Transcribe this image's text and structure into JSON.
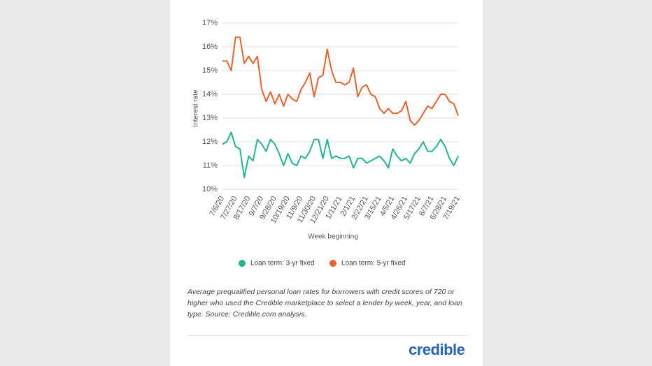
{
  "chart_data": {
    "type": "line",
    "y_label": "Interest rate",
    "x_label": "Week beginning",
    "categories": [
      "7/6/20",
      null,
      null,
      "7/27/20",
      null,
      null,
      "8/17/20",
      null,
      null,
      "9/7/20",
      null,
      null,
      "9/28/20",
      null,
      null,
      "10/19/20",
      null,
      null,
      "11/9/20",
      null,
      null,
      "11/30/20",
      null,
      null,
      "12/21/20",
      null,
      null,
      "1/11/21",
      null,
      null,
      "2/1/21",
      null,
      null,
      "2/22/21",
      null,
      null,
      "3/15/21",
      null,
      null,
      "4/5/21",
      null,
      null,
      "4/26/21",
      null,
      null,
      "5/17/21",
      null,
      null,
      "6/7/21",
      null,
      null,
      "6/28/21",
      null,
      null,
      "7/19/21"
    ],
    "series": [
      {
        "name": "Loan term: 3-yr fixed",
        "color": "#22b594",
        "values": [
          11.9,
          12.0,
          12.4,
          11.8,
          11.7,
          10.5,
          11.4,
          11.2,
          12.1,
          11.9,
          11.6,
          12.1,
          11.9,
          11.5,
          11.0,
          11.5,
          11.1,
          11.0,
          11.4,
          11.3,
          11.6,
          12.1,
          12.1,
          11.3,
          12.1,
          11.3,
          11.4,
          11.3,
          11.3,
          11.4,
          10.9,
          11.3,
          11.3,
          11.1,
          11.2,
          11.3,
          11.4,
          11.2,
          10.9,
          11.7,
          11.4,
          11.2,
          11.3,
          11.1,
          11.5,
          11.7,
          12.0,
          11.6,
          11.6,
          11.8,
          12.1,
          11.8,
          11.3,
          11.0,
          11.4
        ]
      },
      {
        "name": "Loan term: 5-yr fixed",
        "color": "#e8622c",
        "values": [
          15.4,
          15.4,
          15.0,
          16.4,
          16.4,
          15.3,
          15.6,
          15.3,
          15.6,
          14.2,
          13.7,
          14.1,
          13.6,
          14.0,
          13.5,
          14.0,
          13.8,
          13.7,
          14.2,
          14.5,
          14.9,
          13.9,
          14.7,
          14.8,
          15.9,
          15.0,
          14.5,
          14.5,
          14.4,
          14.5,
          15.1,
          13.9,
          14.3,
          14.4,
          14.0,
          13.9,
          13.4,
          13.2,
          13.4,
          13.2,
          13.2,
          13.3,
          13.7,
          12.9,
          12.7,
          12.9,
          13.2,
          13.5,
          13.4,
          13.7,
          14.0,
          14.0,
          13.7,
          13.6,
          13.1
        ]
      }
    ],
    "ylim": [
      10,
      17
    ],
    "yticks": [
      {
        "value": 10,
        "label": "10%"
      },
      {
        "value": 11,
        "label": "11%"
      },
      {
        "value": 12,
        "label": "12%"
      },
      {
        "value": 13,
        "label": "13%"
      },
      {
        "value": 14,
        "label": "14%"
      },
      {
        "value": 15,
        "label": "15%"
      },
      {
        "value": 16,
        "label": "16%"
      },
      {
        "value": 17,
        "label": "17%"
      }
    ],
    "grid": true,
    "caption": "Average prequalified personal loan rates for borrowers with credit scores of 720 or higher who used the Credible marketplace to select a lender by week, year, and loan type. Source: Credible.com analysis.",
    "logo": "credible"
  }
}
